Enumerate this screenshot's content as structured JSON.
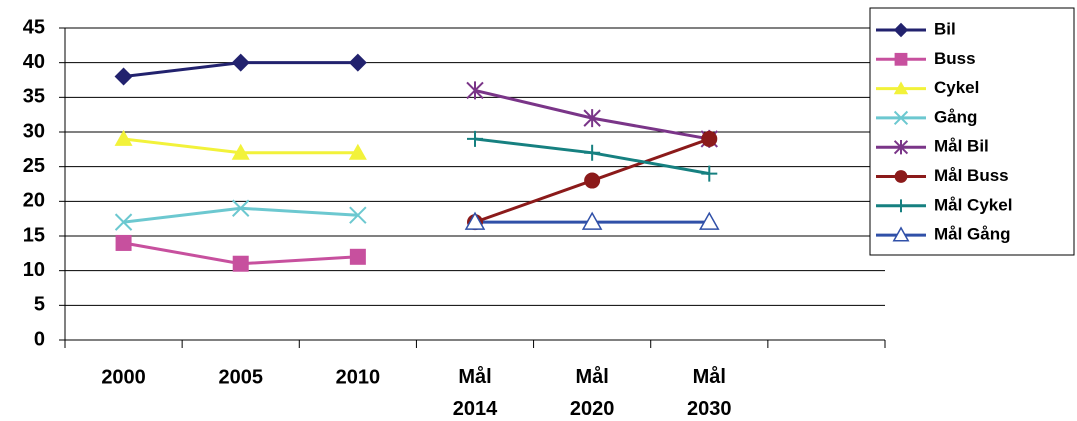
{
  "chart_data": {
    "type": "line",
    "categories": [
      "2000",
      "2005",
      "2010",
      "Mål 2014",
      "Mål 2020",
      "Mål 2030",
      null
    ],
    "series": [
      {
        "name": "Bil",
        "color": "#22226e",
        "marker": "diamond",
        "values": [
          38,
          40,
          40,
          null,
          null,
          null,
          null
        ]
      },
      {
        "name": "Buss",
        "color": "#c7509e",
        "marker": "square",
        "values": [
          14,
          11,
          12,
          null,
          null,
          null,
          null
        ]
      },
      {
        "name": "Cykel",
        "color": "#f2f23a",
        "marker": "triangle",
        "values": [
          29,
          27,
          27,
          null,
          null,
          null,
          null
        ]
      },
      {
        "name": "Gång",
        "color": "#6cc8d0",
        "marker": "x",
        "values": [
          17,
          19,
          18,
          null,
          null,
          null,
          null
        ]
      },
      {
        "name": "Mål Bil",
        "color": "#7a3588",
        "marker": "asterisk",
        "values": [
          null,
          null,
          null,
          36,
          32,
          29,
          null
        ]
      },
      {
        "name": "Mål Buss",
        "color": "#8b1a1a",
        "marker": "circle",
        "values": [
          null,
          null,
          null,
          17,
          23,
          29,
          null
        ]
      },
      {
        "name": "Mål Cykel",
        "color": "#168080",
        "marker": "plus",
        "values": [
          null,
          null,
          null,
          29,
          27,
          24,
          null
        ]
      },
      {
        "name": "Mål Gång",
        "color": "#3050a8",
        "marker": "open-triangle",
        "values": [
          null,
          null,
          null,
          17,
          17,
          17,
          null
        ]
      }
    ],
    "ylim": [
      0,
      45
    ],
    "yticks": [
      0,
      5,
      10,
      15,
      20,
      25,
      30,
      35,
      40,
      45
    ],
    "grid": true,
    "legend": "top-right"
  }
}
